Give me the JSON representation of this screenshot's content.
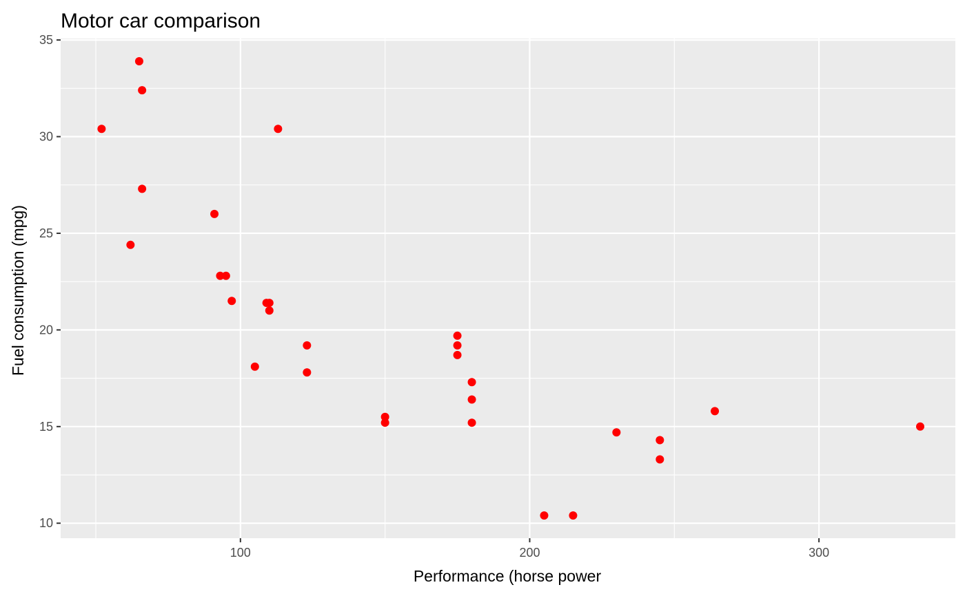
{
  "chart_data": {
    "type": "scatter",
    "title": "Motor car comparison",
    "xlabel": "Performance (horse power",
    "ylabel": "Fuel consumption (mpg)",
    "xlim": [
      37.85,
      347.15
    ],
    "ylim": [
      9.225,
      35.075
    ],
    "x_ticks": [
      100,
      200,
      300
    ],
    "y_ticks": [
      10,
      15,
      20,
      25,
      30,
      35
    ],
    "x_minor_ticks": [
      50,
      150,
      250
    ],
    "y_minor_ticks": [
      12.5,
      17.5,
      22.5,
      27.5,
      32.5
    ],
    "grid": true,
    "legend": "none",
    "point_color": "#ff0000",
    "panel_color": "#ebebeb",
    "points": [
      {
        "x": 110,
        "y": 21.0
      },
      {
        "x": 110,
        "y": 21.4
      },
      {
        "x": 109,
        "y": 21.4
      },
      {
        "x": 93,
        "y": 22.8
      },
      {
        "x": 95,
        "y": 22.8
      },
      {
        "x": 175,
        "y": 18.7
      },
      {
        "x": 175,
        "y": 19.2
      },
      {
        "x": 175,
        "y": 19.7
      },
      {
        "x": 105,
        "y": 18.1
      },
      {
        "x": 245,
        "y": 14.3
      },
      {
        "x": 245,
        "y": 13.3
      },
      {
        "x": 62,
        "y": 24.4
      },
      {
        "x": 97,
        "y": 21.5
      },
      {
        "x": 123,
        "y": 19.2
      },
      {
        "x": 123,
        "y": 17.8
      },
      {
        "x": 180,
        "y": 16.4
      },
      {
        "x": 180,
        "y": 17.3
      },
      {
        "x": 180,
        "y": 15.2
      },
      {
        "x": 205,
        "y": 10.4
      },
      {
        "x": 215,
        "y": 10.4
      },
      {
        "x": 230,
        "y": 14.7
      },
      {
        "x": 66,
        "y": 32.4
      },
      {
        "x": 52,
        "y": 30.4
      },
      {
        "x": 65,
        "y": 33.9
      },
      {
        "x": 150,
        "y": 15.5
      },
      {
        "x": 150,
        "y": 15.2
      },
      {
        "x": 66,
        "y": 27.3
      },
      {
        "x": 91,
        "y": 26.0
      },
      {
        "x": 113,
        "y": 30.4
      },
      {
        "x": 264,
        "y": 15.8
      },
      {
        "x": 335,
        "y": 15.0
      }
    ]
  }
}
